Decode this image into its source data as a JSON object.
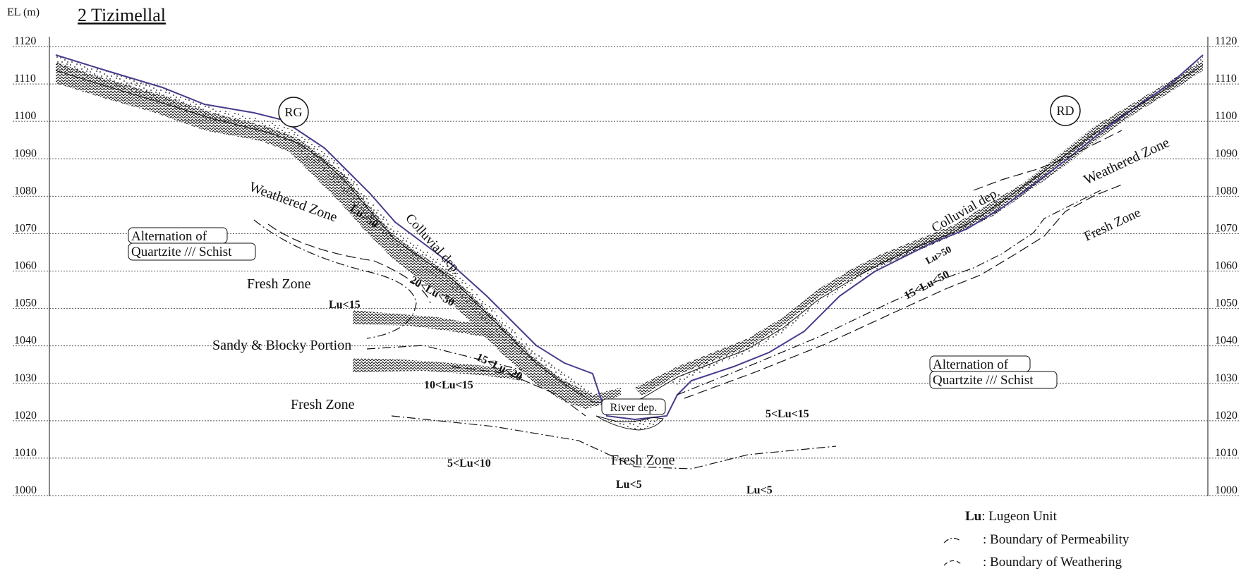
{
  "header": {
    "axis_unit": "EL (m)",
    "section_title": "2 Tizimellal"
  },
  "elevation_axis": {
    "ticks": [
      "1120",
      "1110",
      "1100",
      "1090",
      "1080",
      "1070",
      "1060",
      "1050",
      "1040",
      "1030",
      "1020",
      "1010",
      "1000"
    ],
    "min": 1000,
    "max": 1120,
    "step": 10
  },
  "banks": {
    "left": "RG",
    "right": "RD"
  },
  "zone_labels": {
    "weathered_left": "Weathered Zone",
    "weathered_right": "Weathered Zone",
    "fresh_upper_left": "Fresh Zone",
    "fresh_lower_left": "Fresh Zone",
    "fresh_right": "Fresh Zone",
    "fresh_bottom": "Fresh Zone",
    "sandy_blocky": "Sandy & Blocky Portion",
    "colluvial_left": "Colluvial dep.",
    "colluvial_right": "Colluvial dep.",
    "river": "River dep.",
    "alternation_left_1": "Alternation of",
    "alternation_left_2": "Quartzite /// Schist",
    "alternation_right_1": "Alternation of",
    "alternation_right_2": "Quartzite /// Schist"
  },
  "lugeon_labels": {
    "lu_gt50_left": "Lu>50",
    "lu_20_50": "20<Lu<50",
    "lu_lt15": "Lu<15",
    "lu_15_20": "15<Lu<20",
    "lu_10_15": "10<Lu<15",
    "lu_5_10": "5<Lu<10",
    "lu_lt5_center": "Lu<5",
    "lu_lt5_right": "Lu<5",
    "lu_5_15": "5<Lu<15",
    "lu_15_50": "15<Lu<50",
    "lu_gt50_right": "Lu>50"
  },
  "legend": {
    "lu_abbrev": "Lu",
    "lu_text": ": Lugeon Unit",
    "permeability": ": Boundary of Permeability",
    "weathering": ": Boundary of Weathering"
  },
  "colors": {
    "ground_surface": "#4b3a8c",
    "lines": "#111111",
    "grid": "#555555"
  }
}
